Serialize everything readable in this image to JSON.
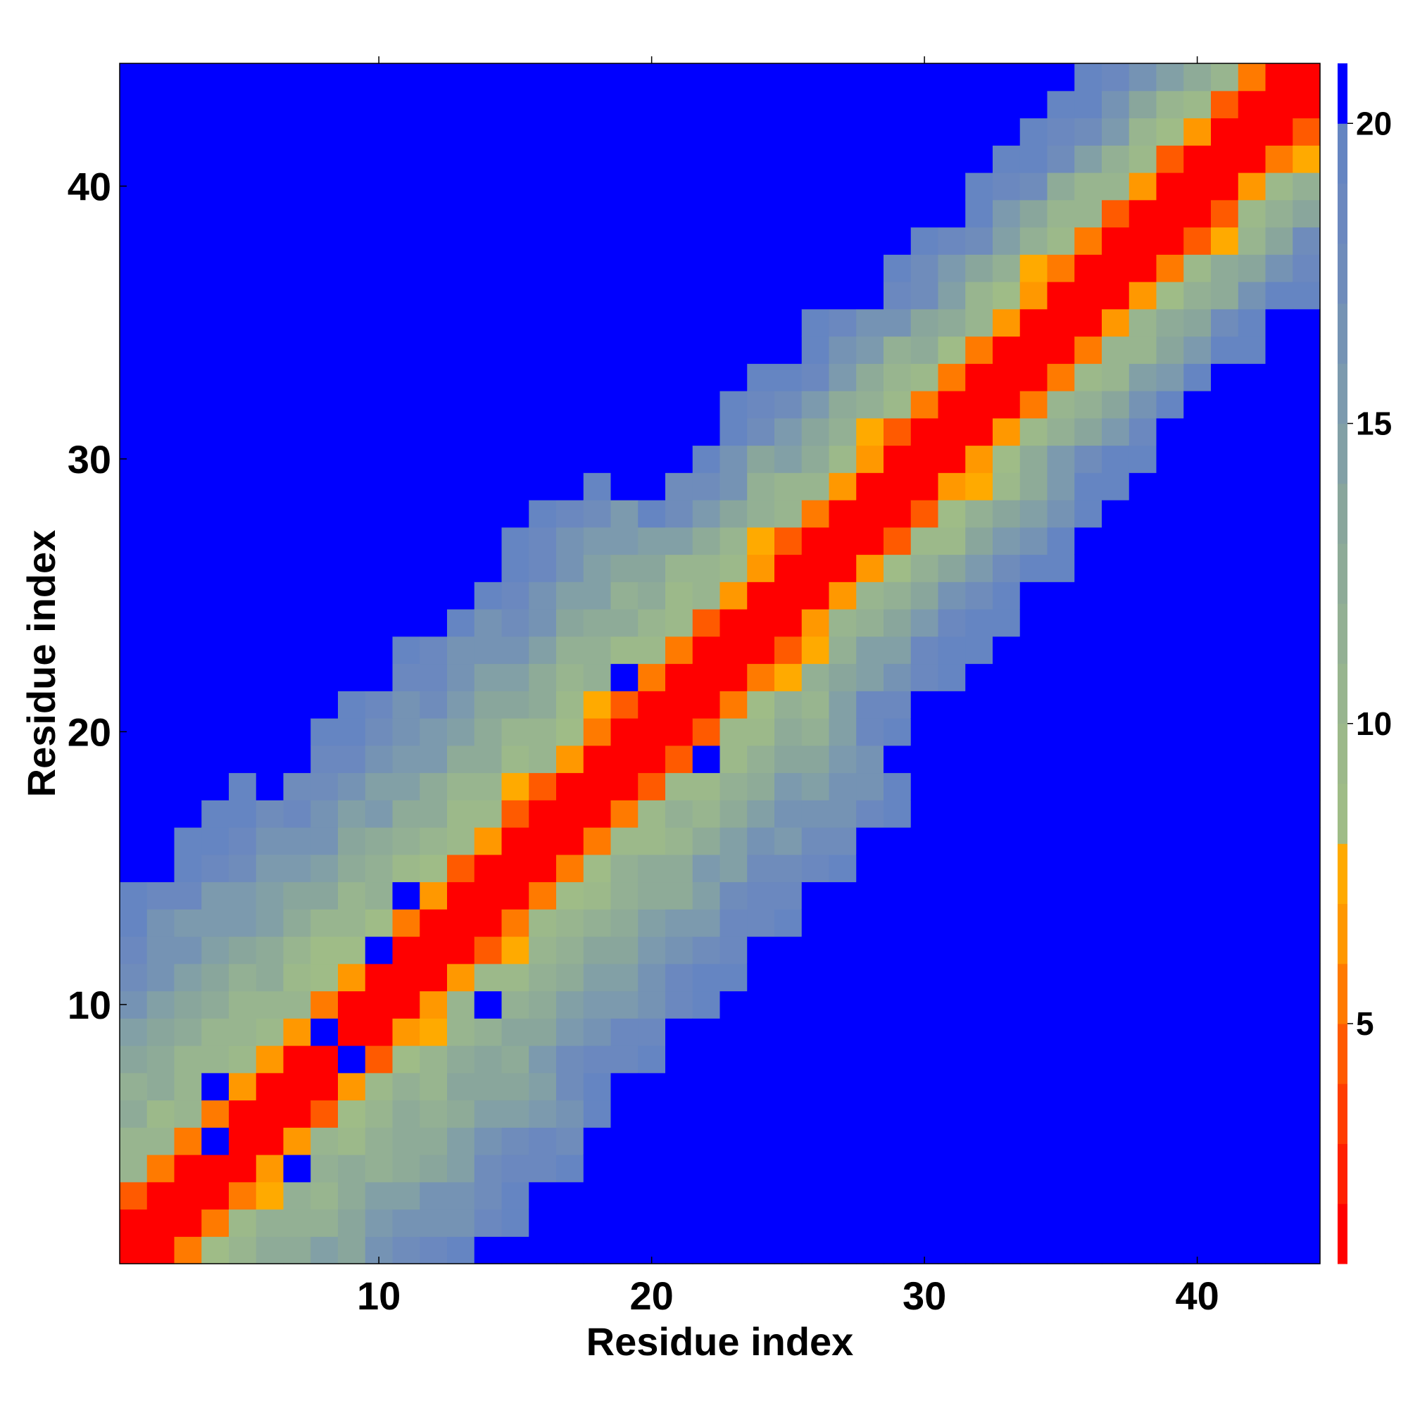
{
  "chart_data": {
    "type": "heatmap",
    "xlabel": "Residue index",
    "ylabel": "Residue index",
    "xlim": [
      0.5,
      44.5
    ],
    "ylim": [
      0.5,
      44.5
    ],
    "x_ticks": [
      10,
      20,
      30,
      40
    ],
    "y_ticks": [
      10,
      20,
      30,
      40
    ],
    "n_residues": 44,
    "colorbar": {
      "ticks": [
        5,
        10,
        15,
        20
      ],
      "range": [
        1,
        21
      ],
      "color_levels": [
        {
          "max": 2,
          "color": "#ff0000"
        },
        {
          "max": 3,
          "color": "#ff2000"
        },
        {
          "max": 4,
          "color": "#ff3d00"
        },
        {
          "max": 5,
          "color": "#ff5a00"
        },
        {
          "max": 6,
          "color": "#ff7a00"
        },
        {
          "max": 7,
          "color": "#ff9800"
        },
        {
          "max": 8,
          "color": "#ffaa00"
        },
        {
          "max": 9,
          "color": "#9fbc87"
        },
        {
          "max": 10,
          "color": "#9cb98a"
        },
        {
          "max": 11,
          "color": "#98b58f"
        },
        {
          "max": 12,
          "color": "#93b094"
        },
        {
          "max": 13,
          "color": "#8eab98"
        },
        {
          "max": 14,
          "color": "#89a69c"
        },
        {
          "max": 15,
          "color": "#82a0a6"
        },
        {
          "max": 16,
          "color": "#7c9aae"
        },
        {
          "max": 17,
          "color": "#7593b4"
        },
        {
          "max": 18,
          "color": "#6f8cbb"
        },
        {
          "max": 19,
          "color": "#6b88bf"
        },
        {
          "max": 20,
          "color": "#6585c2"
        },
        {
          "max": 21,
          "color": "#0000ff"
        }
      ]
    },
    "cutoff_note_value": 21,
    "blue_islands_near_diagonal": [
      [
        19,
        22
      ],
      [
        11,
        14
      ],
      [
        7,
        4
      ],
      [
        14,
        10
      ],
      [
        22,
        19
      ],
      [
        4,
        7
      ],
      [
        10,
        12
      ],
      [
        8,
        9
      ],
      [
        9,
        8
      ],
      [
        4,
        5
      ]
    ],
    "description_values": {
      "band1": 1,
      "band2": 6,
      "band3": 10,
      "band4": 14,
      "band5": 18
    }
  }
}
